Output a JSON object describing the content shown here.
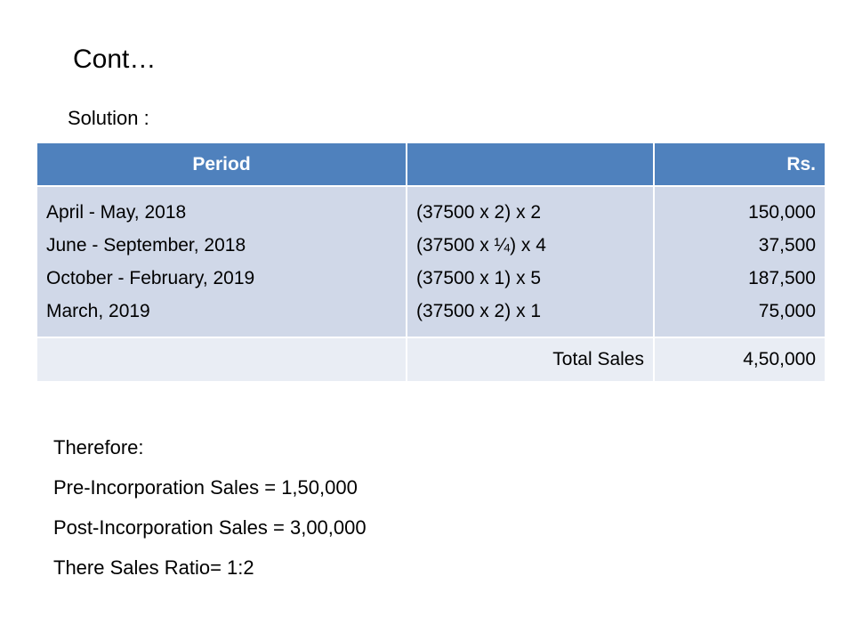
{
  "slide": {
    "title": "Cont…",
    "subtitle": "Solution :"
  },
  "table": {
    "headers": [
      "Period",
      "",
      "Rs."
    ],
    "rows": {
      "periods": [
        "April - May, 2018",
        "June - September, 2018",
        "October - February, 2019",
        "March, 2019"
      ],
      "calculations": [
        "(37500 x 2) x 2",
        "(37500 x ¼) x 4",
        "(37500 x 1) x 5",
        "(37500 x 2) x 1"
      ],
      "amounts": [
        "150,000",
        "37,500",
        "187,500",
        "75,000"
      ]
    },
    "total": {
      "label": "Total Sales",
      "value": "4,50,000"
    },
    "colors": {
      "header_bg": "#4f81bd",
      "body_bg": "#d0d8e8",
      "total_bg": "#e9edf4"
    }
  },
  "conclusion": {
    "lines": [
      "Therefore:",
      "Pre-Incorporation Sales = 1,50,000",
      "Post-Incorporation Sales = 3,00,000",
      "There Sales Ratio= 1:2"
    ]
  }
}
